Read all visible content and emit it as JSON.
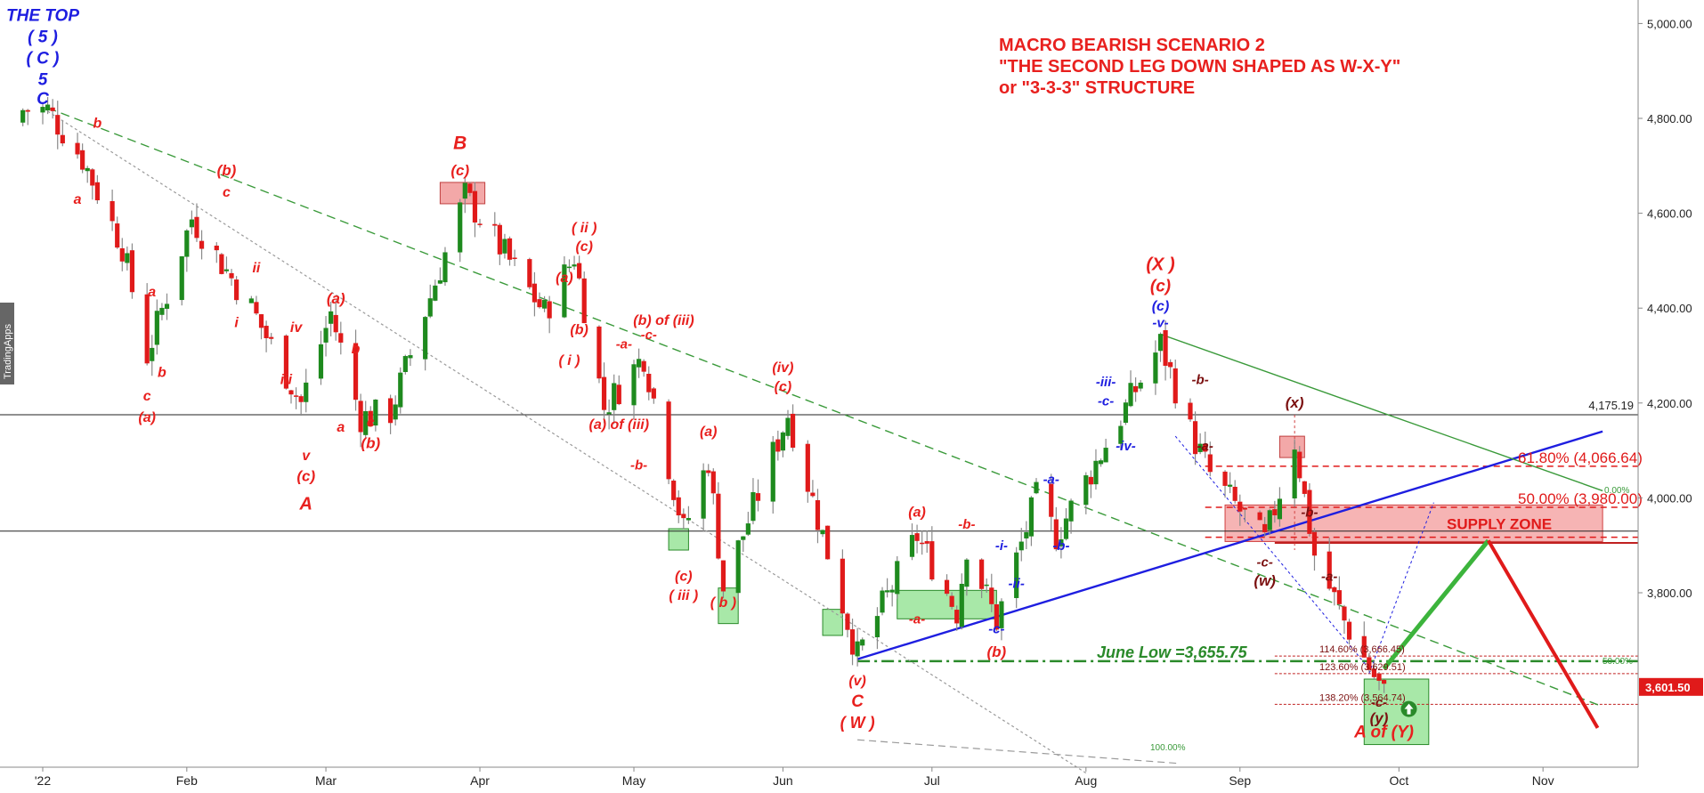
{
  "chart_data": {
    "type": "candlestick",
    "title": [
      "MACRO BEARISH SCENARIO 2",
      "\"THE SECOND LEG DOWN SHAPED AS W-X-Y\"",
      "or \"3-3-3\" STRUCTURE"
    ],
    "watermark": "TradingApps",
    "ylim": [
      3480,
      5040
    ],
    "y_ticks": [
      "5,000.00",
      "4,800.00",
      "4,600.00",
      "4,400.00",
      "4,200.00",
      "4,000.00",
      "3,800.00"
    ],
    "x_months": [
      "'22",
      "Feb",
      "Mar",
      "Apr",
      "May",
      "Jun",
      "Jul",
      "Aug",
      "Sep",
      "Oct",
      "Nov"
    ],
    "price_tags": [
      "4,175.19",
      "3,601.50"
    ],
    "june_low_label": "June Low =3,655.75",
    "supply_zone": "SUPPLY ZONE",
    "fib_levels": [
      {
        "label": "61.80% (4,066.64)",
        "value": 4066.64
      },
      {
        "label": "50.00% (3,980.00)",
        "value": 3980.0
      },
      {
        "label": "114.60% (3,666.45)",
        "value": 3666.45
      },
      {
        "label": "123.60% (3,629.51)",
        "value": 3629.51
      },
      {
        "label": "138.20% (3,564.74)",
        "value": 3564.74
      }
    ],
    "small_pcts": [
      "0.00%",
      "50.00%",
      "100.00%"
    ],
    "anchors": [
      {
        "d": "2022-01-04",
        "p": 4818
      },
      {
        "d": "2022-01-11",
        "p": 4715
      },
      {
        "d": "2022-01-19",
        "p": 4530
      },
      {
        "d": "2022-01-24",
        "p": 4300
      },
      {
        "d": "2022-02-02",
        "p": 4590
      },
      {
        "d": "2022-02-14",
        "p": 4400
      },
      {
        "d": "2022-02-24",
        "p": 4200
      },
      {
        "d": "2022-03-02",
        "p": 4390
      },
      {
        "d": "2022-03-08",
        "p": 4170
      },
      {
        "d": "2022-03-14",
        "p": 4180
      },
      {
        "d": "2022-03-29",
        "p": 4637
      },
      {
        "d": "2022-04-14",
        "p": 4390
      },
      {
        "d": "2022-04-20",
        "p": 4510
      },
      {
        "d": "2022-04-26",
        "p": 4190
      },
      {
        "d": "2022-05-04",
        "p": 4300
      },
      {
        "d": "2022-05-12",
        "p": 3930
      },
      {
        "d": "2022-05-17",
        "p": 4080
      },
      {
        "d": "2022-05-20",
        "p": 3810
      },
      {
        "d": "2022-06-02",
        "p": 4177
      },
      {
        "d": "2022-06-16",
        "p": 3666
      },
      {
        "d": "2022-06-28",
        "p": 3920
      },
      {
        "d": "2022-07-06",
        "p": 3760
      },
      {
        "d": "2022-07-08",
        "p": 3900
      },
      {
        "d": "2022-07-14",
        "p": 3740
      },
      {
        "d": "2022-07-22",
        "p": 4000
      },
      {
        "d": "2022-07-26",
        "p": 3920
      },
      {
        "d": "2022-08-16",
        "p": 4325
      },
      {
        "d": "2022-08-22",
        "p": 4140
      },
      {
        "d": "2022-08-26",
        "p": 4050
      },
      {
        "d": "2022-09-06",
        "p": 3907
      },
      {
        "d": "2022-09-12",
        "p": 4120
      },
      {
        "d": "2022-09-16",
        "p": 3880
      },
      {
        "d": "2022-09-22",
        "p": 3740
      },
      {
        "d": "2022-09-30",
        "p": 3585
      }
    ],
    "projection": [
      {
        "d": "2022-09-30",
        "p": 3640
      },
      {
        "d": "2022-10-21",
        "p": 3910
      },
      {
        "d": "2022-11-12",
        "p": 3515
      }
    ],
    "labels": [
      {
        "t": "THE TOP",
        "d": "2022-01-03",
        "p": 5005,
        "c": "blue",
        "s": 19
      },
      {
        "t": "( 5 )",
        "d": "2022-01-03",
        "p": 4960,
        "c": "blue",
        "s": 19
      },
      {
        "t": "( C )",
        "d": "2022-01-03",
        "p": 4915,
        "c": "blue",
        "s": 19
      },
      {
        "t": "5",
        "d": "2022-01-03",
        "p": 4870,
        "c": "blue",
        "s": 19
      },
      {
        "t": "C",
        "d": "2022-01-03",
        "p": 4830,
        "c": "blue",
        "s": 19
      },
      {
        "t": "a",
        "d": "2022-01-10",
        "p": 4620,
        "c": "red",
        "s": 16
      },
      {
        "t": "b",
        "d": "2022-01-14",
        "p": 4780,
        "c": "red",
        "s": 16
      },
      {
        "t": "c",
        "d": "2022-01-24",
        "p": 4205,
        "c": "red",
        "s": 16
      },
      {
        "t": "(a)",
        "d": "2022-01-24",
        "p": 4160,
        "c": "red",
        "s": 16
      },
      {
        "t": "a",
        "d": "2022-01-25",
        "p": 4425,
        "c": "red",
        "s": 16
      },
      {
        "t": "b",
        "d": "2022-01-27",
        "p": 4255,
        "c": "red",
        "s": 16
      },
      {
        "t": "(b)",
        "d": "2022-02-09",
        "p": 4680,
        "c": "red",
        "s": 17
      },
      {
        "t": "c",
        "d": "2022-02-09",
        "p": 4635,
        "c": "red",
        "s": 16
      },
      {
        "t": "ii",
        "d": "2022-02-15",
        "p": 4475,
        "c": "red",
        "s": 16
      },
      {
        "t": "i",
        "d": "2022-02-11",
        "p": 4360,
        "c": "red",
        "s": 16
      },
      {
        "t": "iv",
        "d": "2022-02-23",
        "p": 4350,
        "c": "red",
        "s": 16
      },
      {
        "t": "iii",
        "d": "2022-02-21",
        "p": 4240,
        "c": "red",
        "s": 16
      },
      {
        "t": "v",
        "d": "2022-02-25",
        "p": 4080,
        "c": "red",
        "s": 16
      },
      {
        "t": "(c)",
        "d": "2022-02-25",
        "p": 4035,
        "c": "red",
        "s": 17
      },
      {
        "t": "A",
        "d": "2022-02-25",
        "p": 3975,
        "c": "red",
        "s": 20
      },
      {
        "t": "(a)",
        "d": "2022-03-03",
        "p": 4410,
        "c": "red",
        "s": 17
      },
      {
        "t": "b",
        "d": "2022-03-07",
        "p": 4305,
        "c": "red",
        "s": 16
      },
      {
        "t": "a",
        "d": "2022-03-04",
        "p": 4140,
        "c": "red",
        "s": 16
      },
      {
        "t": "c",
        "d": "2022-03-10",
        "p": 4150,
        "c": "red",
        "s": 16
      },
      {
        "t": "(b)",
        "d": "2022-03-10",
        "p": 4105,
        "c": "red",
        "s": 17
      },
      {
        "t": "B",
        "d": "2022-03-28",
        "p": 4735,
        "c": "red",
        "s": 21
      },
      {
        "t": "(c)",
        "d": "2022-03-28",
        "p": 4680,
        "c": "red",
        "s": 17
      },
      {
        "t": "( ii )",
        "d": "2022-04-22",
        "p": 4560,
        "c": "red",
        "s": 16
      },
      {
        "t": "(c)",
        "d": "2022-04-22",
        "p": 4520,
        "c": "red",
        "s": 16
      },
      {
        "t": "(a)",
        "d": "2022-04-18",
        "p": 4455,
        "c": "red",
        "s": 16
      },
      {
        "t": "(b)",
        "d": "2022-04-21",
        "p": 4345,
        "c": "red",
        "s": 16
      },
      {
        "t": "( i )",
        "d": "2022-04-19",
        "p": 4280,
        "c": "red",
        "s": 16
      },
      {
        "t": "(b) of (iii)",
        "d": "2022-05-08",
        "p": 4365,
        "c": "red",
        "s": 16
      },
      {
        "t": "-c-",
        "d": "2022-05-05",
        "p": 4335,
        "c": "red",
        "s": 15
      },
      {
        "t": "-a-",
        "d": "2022-04-30",
        "p": 4315,
        "c": "red",
        "s": 15
      },
      {
        "t": "(a) of (iii)",
        "d": "2022-04-29",
        "p": 4145,
        "c": "red",
        "s": 16
      },
      {
        "t": "-b-",
        "d": "2022-05-03",
        "p": 4060,
        "c": "red",
        "s": 15
      },
      {
        "t": "(c)",
        "d": "2022-05-12",
        "p": 3825,
        "c": "red",
        "s": 16
      },
      {
        "t": "( iii )",
        "d": "2022-05-12",
        "p": 3785,
        "c": "red",
        "s": 16
      },
      {
        "t": "( b )",
        "d": "2022-05-20",
        "p": 3770,
        "c": "red",
        "s": 16
      },
      {
        "t": "(a)",
        "d": "2022-05-17",
        "p": 4130,
        "c": "red",
        "s": 16
      },
      {
        "t": "(iv)",
        "d": "2022-06-01",
        "p": 4265,
        "c": "red",
        "s": 16
      },
      {
        "t": "(c)",
        "d": "2022-06-01",
        "p": 4225,
        "c": "red",
        "s": 16
      },
      {
        "t": "(v)",
        "d": "2022-06-16",
        "p": 3605,
        "c": "red",
        "s": 16
      },
      {
        "t": "C",
        "d": "2022-06-16",
        "p": 3560,
        "c": "red",
        "s": 19
      },
      {
        "t": "( W )",
        "d": "2022-06-16",
        "p": 3515,
        "c": "red",
        "s": 18
      },
      {
        "t": "(a)",
        "d": "2022-06-28",
        "p": 3960,
        "c": "red",
        "s": 16
      },
      {
        "t": "-a-",
        "d": "2022-06-28",
        "p": 3735,
        "c": "red",
        "s": 15
      },
      {
        "t": "-b-",
        "d": "2022-07-08",
        "p": 3935,
        "c": "red",
        "s": 15
      },
      {
        "t": "(b)",
        "d": "2022-07-14",
        "p": 3665,
        "c": "red",
        "s": 17
      },
      {
        "t": "-c-",
        "d": "2022-07-14",
        "p": 3715,
        "c": "blue",
        "s": 15
      },
      {
        "t": "-ii-",
        "d": "2022-07-18",
        "p": 3810,
        "c": "blue",
        "s": 15
      },
      {
        "t": "-i-",
        "d": "2022-07-15",
        "p": 3890,
        "c": "blue",
        "s": 15
      },
      {
        "t": "-a-",
        "d": "2022-07-25",
        "p": 4030,
        "c": "blue",
        "s": 15
      },
      {
        "t": "-b-",
        "d": "2022-07-27",
        "p": 3890,
        "c": "blue",
        "s": 15
      },
      {
        "t": "-iii-",
        "d": "2022-08-05",
        "p": 4235,
        "c": "blue",
        "s": 15
      },
      {
        "t": "-c-",
        "d": "2022-08-05",
        "p": 4195,
        "c": "blue",
        "s": 15
      },
      {
        "t": "-iv-",
        "d": "2022-08-09",
        "p": 4100,
        "c": "blue",
        "s": 15
      },
      {
        "t": "(X )",
        "d": "2022-08-16",
        "p": 4480,
        "c": "red",
        "s": 20
      },
      {
        "t": "(c)",
        "d": "2022-08-16",
        "p": 4435,
        "c": "red",
        "s": 19
      },
      {
        "t": "(c)",
        "d": "2022-08-16",
        "p": 4395,
        "c": "blue",
        "s": 16
      },
      {
        "t": "-v-",
        "d": "2022-08-16",
        "p": 4360,
        "c": "blue",
        "s": 15
      },
      {
        "t": "-b-",
        "d": "2022-08-24",
        "p": 4240,
        "c": "maroon",
        "s": 15
      },
      {
        "t": "-a-",
        "d": "2022-08-25",
        "p": 4100,
        "c": "maroon",
        "s": 15
      },
      {
        "t": "(x)",
        "d": "2022-09-12",
        "p": 4190,
        "c": "maroon",
        "s": 17
      },
      {
        "t": "-b-",
        "d": "2022-09-15",
        "p": 3960,
        "c": "maroon",
        "s": 15
      },
      {
        "t": "-c-",
        "d": "2022-09-06",
        "p": 3855,
        "c": "maroon",
        "s": 15
      },
      {
        "t": "(w)",
        "d": "2022-09-06",
        "p": 3815,
        "c": "maroon",
        "s": 17
      },
      {
        "t": "-a-",
        "d": "2022-09-19",
        "p": 3825,
        "c": "maroon",
        "s": 15
      },
      {
        "t": "-c-",
        "d": "2022-09-29",
        "p": 3560,
        "c": "maroon",
        "s": 15
      },
      {
        "t": "(y)",
        "d": "2022-09-29",
        "p": 3525,
        "c": "maroon",
        "s": 17
      },
      {
        "t": "A of (Y)",
        "d": "2022-09-30",
        "p": 3495,
        "c": "red",
        "s": 19
      }
    ]
  }
}
